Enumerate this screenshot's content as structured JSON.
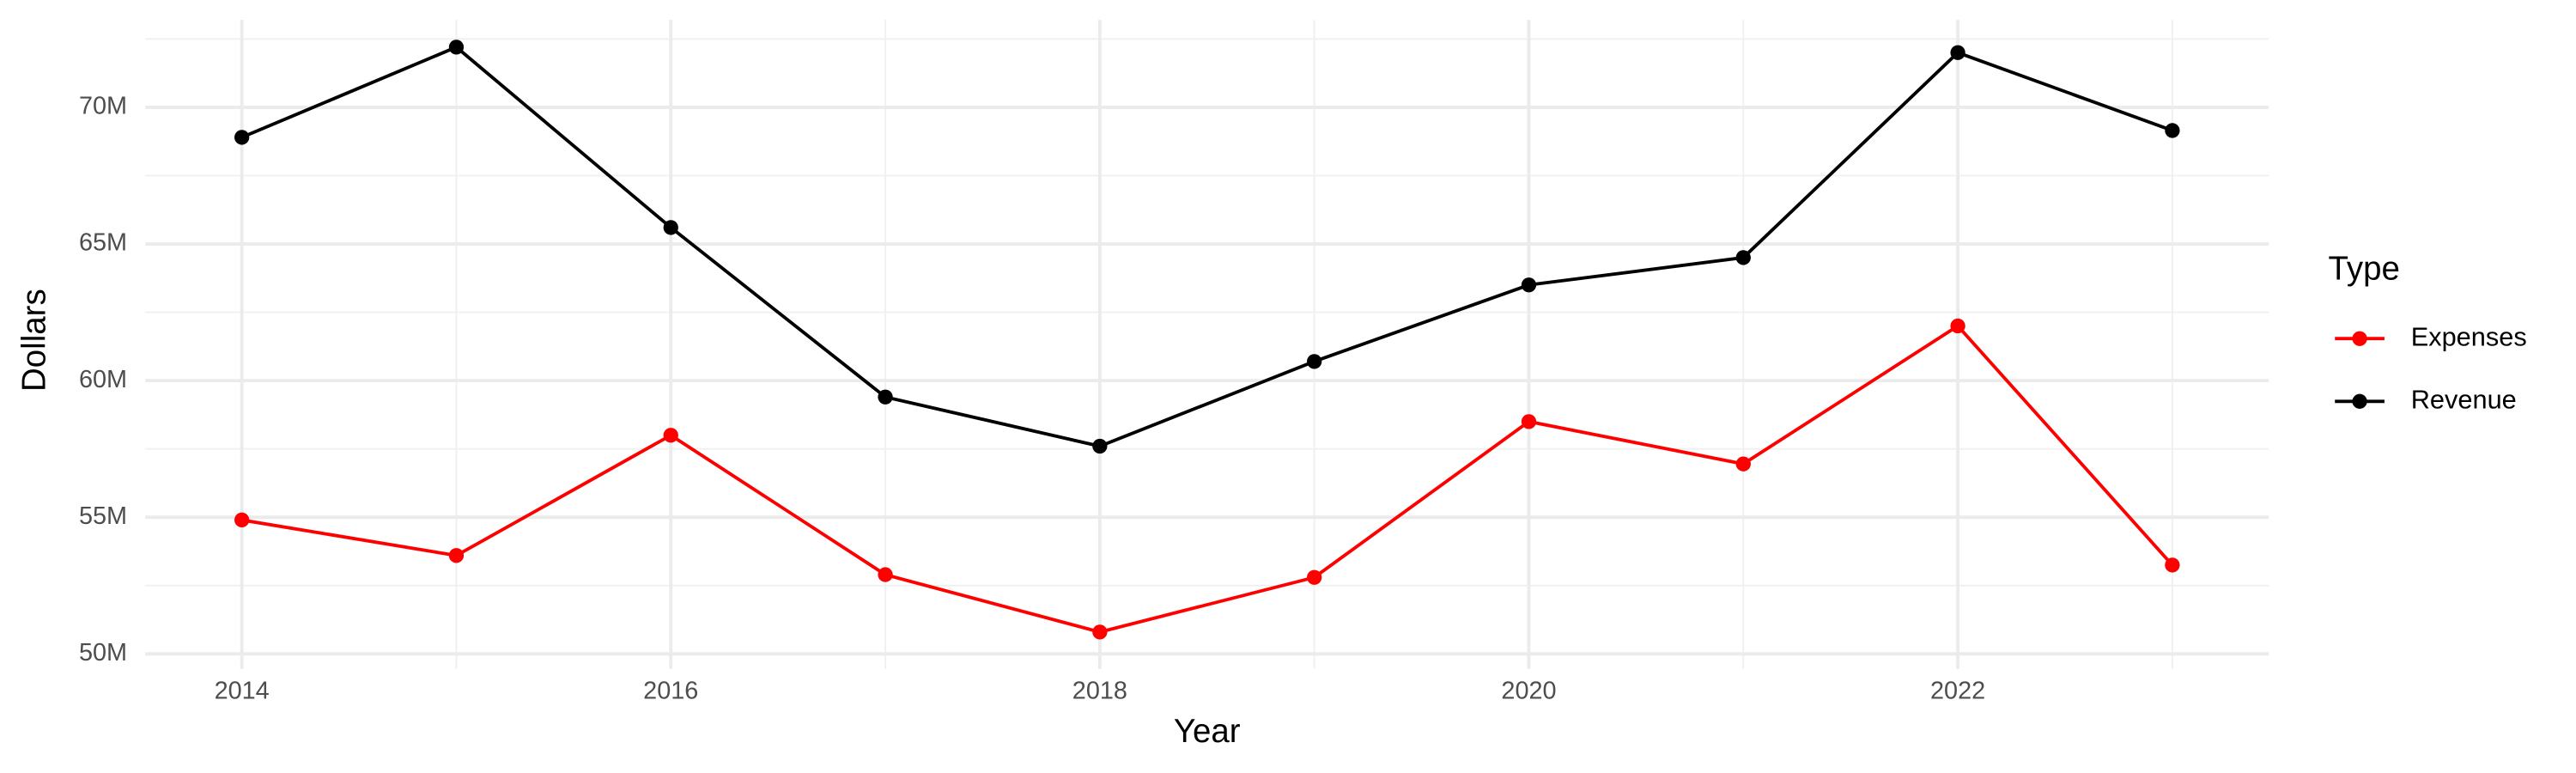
{
  "chart_data": {
    "type": "line",
    "x_label": "Year",
    "y_label": "Dollars",
    "x": [
      2014,
      2015,
      2016,
      2017,
      2018,
      2019,
      2020,
      2021,
      2022,
      2023
    ],
    "series": [
      {
        "name": "Expenses",
        "color": "#ff0000",
        "values": [
          54900000,
          53600000,
          58000000,
          52900000,
          50800000,
          52800000,
          58500000,
          56950000,
          62000000,
          53250000
        ]
      },
      {
        "name": "Revenue",
        "color": "#000000",
        "values": [
          68900000,
          72200000,
          65600000,
          59400000,
          57600000,
          60700000,
          63500000,
          64500000,
          72000000,
          69150000
        ]
      }
    ],
    "xlim": [
      2013.55,
      2023.45
    ],
    "xticks": [
      2014,
      2016,
      2018,
      2020,
      2022
    ],
    "ylim": [
      49450000,
      73200000
    ],
    "yticks": [
      {
        "value": 50000000,
        "label": "50M"
      },
      {
        "value": 55000000,
        "label": "55M"
      },
      {
        "value": 60000000,
        "label": "60M"
      },
      {
        "value": 65000000,
        "label": "65M"
      },
      {
        "value": 70000000,
        "label": "70M"
      }
    ],
    "legend_title": "Type",
    "legend_position": "right",
    "grid": true
  }
}
